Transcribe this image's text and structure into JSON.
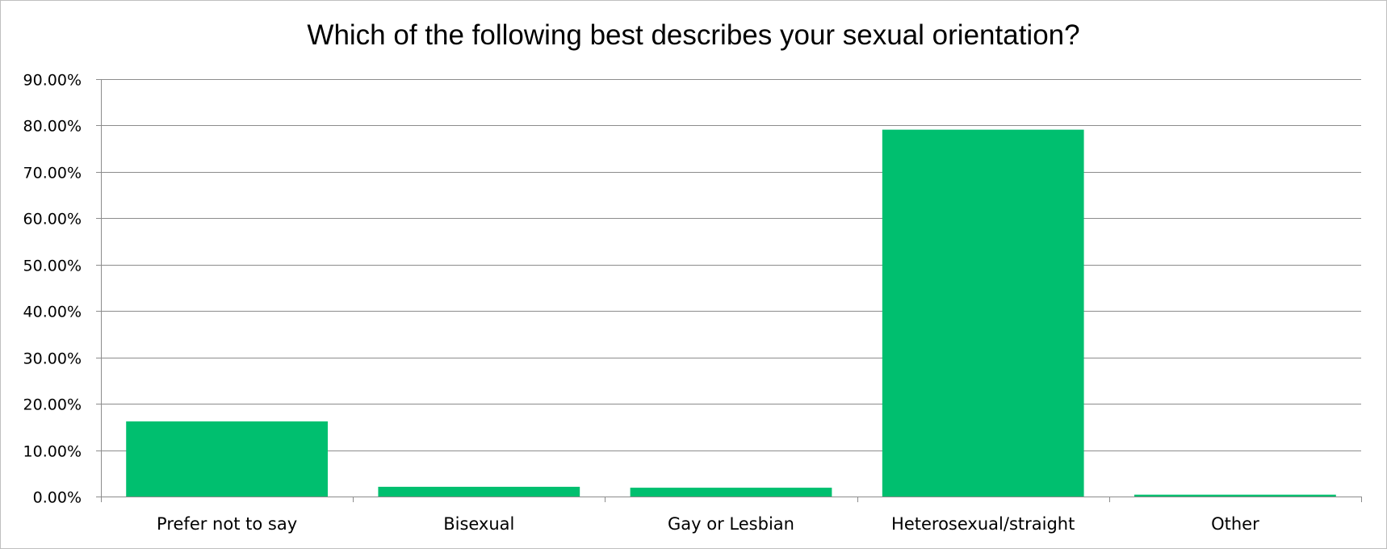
{
  "chart_data": {
    "type": "bar",
    "title": "Which of the following best describes your sexual orientation?",
    "categories": [
      "Prefer not to say",
      "Bisexual",
      "Gay or Lesbian",
      "Heterosexual/straight",
      "Other"
    ],
    "values": [
      16.2,
      2.1,
      1.9,
      79.1,
      0.4
    ],
    "ylim": [
      0,
      90
    ],
    "yticks": [
      0,
      10,
      20,
      30,
      40,
      50,
      60,
      70,
      80,
      90
    ],
    "ytick_labels": [
      "0.00%",
      "10.00%",
      "20.00%",
      "30.00%",
      "40.00%",
      "50.00%",
      "60.00%",
      "70.00%",
      "80.00%",
      "90.00%"
    ],
    "xlabel": "",
    "ylabel": "",
    "grid": true,
    "legend": "none",
    "bar_color": "#00BF6F",
    "grid_color": "#8c8c8c"
  }
}
